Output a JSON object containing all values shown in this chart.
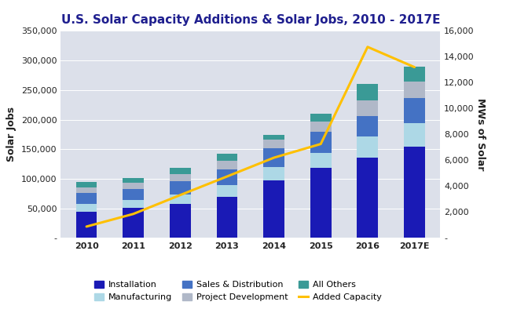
{
  "title": "U.S. Solar Capacity Additions & Solar Jobs, 2010 - 2017E",
  "years": [
    "2010",
    "2011",
    "2012",
    "2013",
    "2014",
    "2015",
    "2016",
    "2017E"
  ],
  "ylabel_left": "Solar Jobs",
  "ylabel_right": "MWs of Solar",
  "ylim_left": [
    0,
    350000
  ],
  "ylim_right": [
    0,
    16000
  ],
  "yticks_left": [
    0,
    50000,
    100000,
    150000,
    200000,
    250000,
    300000,
    350000
  ],
  "ytick_labels_left": [
    "-",
    "50,000",
    "100,000",
    "150,000",
    "200,000",
    "250,000",
    "300,000",
    "350,000"
  ],
  "yticks_right": [
    0,
    2000,
    4000,
    6000,
    8000,
    10000,
    12000,
    14000,
    16000
  ],
  "ytick_labels_right": [
    "-",
    "2,000",
    "4,000",
    "6,000",
    "8,000",
    "10,000",
    "12,000",
    "14,000",
    "16,000"
  ],
  "installation": [
    44000,
    51000,
    57000,
    69000,
    97000,
    119000,
    136000,
    154000
  ],
  "manufacturing": [
    14000,
    13000,
    17000,
    20000,
    23000,
    25000,
    35000,
    40000
  ],
  "sales_distribution": [
    18000,
    19000,
    22000,
    27000,
    32000,
    35000,
    35000,
    42000
  ],
  "project_development": [
    10000,
    10000,
    12000,
    15000,
    14000,
    18000,
    26000,
    28000
  ],
  "all_others": [
    9000,
    8000,
    10000,
    11000,
    8000,
    13000,
    28000,
    25000
  ],
  "added_capacity": [
    878,
    1855,
    3313,
    4751,
    6201,
    7260,
    14762,
    13200
  ],
  "colors": {
    "installation": "#1a1ab5",
    "manufacturing": "#add8e6",
    "sales_distribution": "#4472c4",
    "project_development": "#b0b8c8",
    "all_others": "#3a9a96",
    "added_capacity": "#ffc000"
  },
  "bg_color": "#dce0ea",
  "fig_color": "#ffffff",
  "title_color": "#1f1f8f",
  "title_fontsize": 11,
  "axis_label_fontsize": 9,
  "tick_fontsize": 8
}
